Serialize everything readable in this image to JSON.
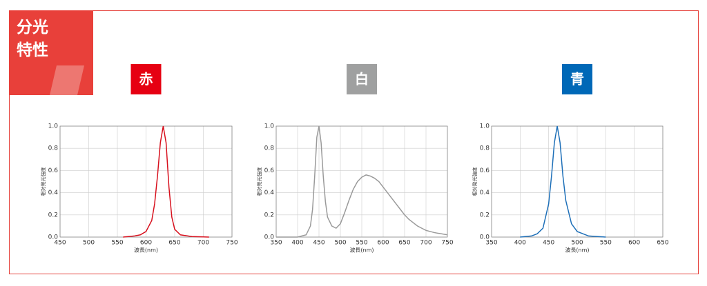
{
  "heading": {
    "lines": [
      "分光",
      "特性"
    ]
  },
  "chart_data": [
    {
      "type": "line",
      "title": "赤",
      "title_color": "#e60012",
      "color": "#d7101d",
      "xlabel": "波長(nm)",
      "ylabel": "相対発光強度",
      "x": [
        560,
        580,
        590,
        600,
        610,
        615,
        620,
        625,
        630,
        635,
        640,
        645,
        650,
        660,
        680,
        710
      ],
      "values": [
        0,
        0.01,
        0.02,
        0.05,
        0.15,
        0.3,
        0.55,
        0.85,
        1.0,
        0.85,
        0.45,
        0.18,
        0.07,
        0.02,
        0.005,
        0
      ],
      "xlim": [
        450,
        750
      ],
      "xticks": [
        450,
        500,
        550,
        600,
        650,
        700,
        750
      ],
      "ylim": [
        0,
        1
      ],
      "yticks": [
        {
          "value": 0,
          "label": "0.0"
        },
        0.2,
        0.4,
        0.6,
        0.8,
        {
          "value": 1,
          "label": "1.0"
        }
      ],
      "grid": true
    },
    {
      "type": "line",
      "title": "白",
      "title_color": "#9fa0a0",
      "color": "#9a9a9a",
      "xlabel": "波長(nm)",
      "ylabel": "相対発光強度",
      "x": [
        350,
        400,
        420,
        430,
        435,
        440,
        445,
        450,
        455,
        460,
        465,
        470,
        480,
        490,
        500,
        510,
        520,
        530,
        540,
        550,
        560,
        570,
        580,
        590,
        600,
        610,
        620,
        630,
        640,
        650,
        660,
        670,
        680,
        690,
        700,
        720,
        750
      ],
      "values": [
        0,
        0,
        0.02,
        0.1,
        0.25,
        0.55,
        0.9,
        1.0,
        0.85,
        0.55,
        0.32,
        0.18,
        0.1,
        0.08,
        0.12,
        0.22,
        0.33,
        0.43,
        0.5,
        0.54,
        0.56,
        0.55,
        0.53,
        0.5,
        0.45,
        0.4,
        0.35,
        0.3,
        0.25,
        0.2,
        0.16,
        0.13,
        0.1,
        0.08,
        0.06,
        0.04,
        0.02
      ],
      "xlim": [
        350,
        750
      ],
      "xticks": [
        350,
        400,
        450,
        500,
        550,
        600,
        650,
        700,
        750
      ],
      "ylim": [
        0,
        1
      ],
      "yticks": [
        {
          "value": 0,
          "label": "0.0"
        },
        0.2,
        0.4,
        0.6,
        0.8,
        {
          "value": 1,
          "label": "1.0"
        }
      ],
      "grid": true
    },
    {
      "type": "line",
      "title": "青",
      "title_color": "#0068b7",
      "color": "#1d6fb8",
      "xlabel": "波長(nm)",
      "ylabel": "相対発光強度",
      "x": [
        400,
        420,
        430,
        440,
        450,
        455,
        460,
        465,
        470,
        475,
        480,
        490,
        500,
        520,
        550
      ],
      "values": [
        0,
        0.01,
        0.03,
        0.08,
        0.3,
        0.55,
        0.85,
        1.0,
        0.85,
        0.55,
        0.33,
        0.12,
        0.05,
        0.01,
        0
      ],
      "xlim": [
        350,
        650
      ],
      "xticks": [
        350,
        400,
        450,
        500,
        550,
        600,
        650
      ],
      "ylim": [
        0,
        1
      ],
      "yticks": [
        {
          "value": 0,
          "label": "0.0"
        },
        0.2,
        0.4,
        0.6,
        0.8,
        {
          "value": 1,
          "label": "1.0"
        }
      ],
      "grid": true
    }
  ]
}
